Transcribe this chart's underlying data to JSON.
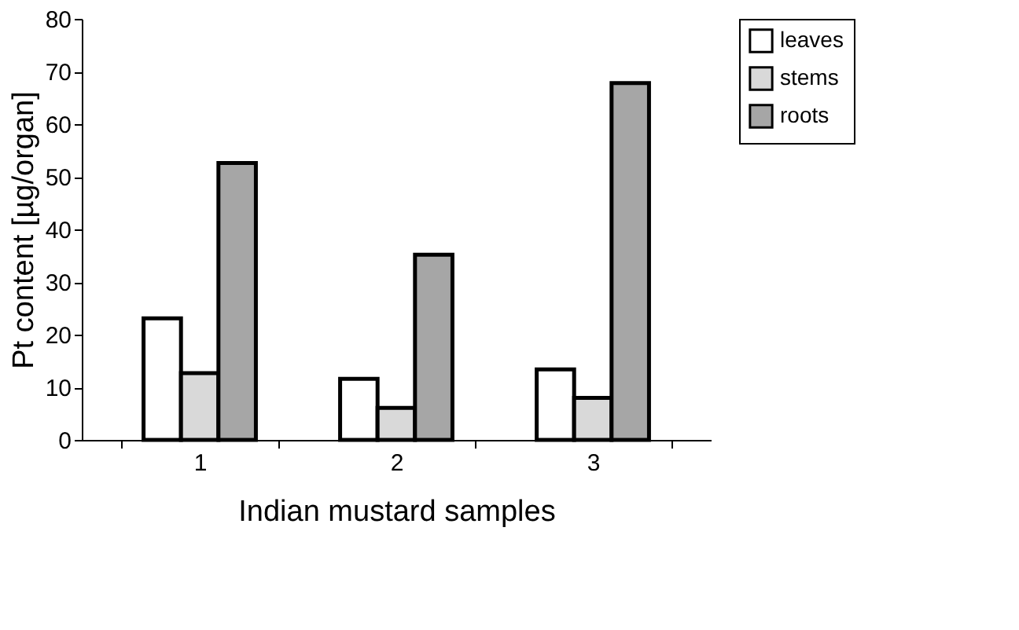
{
  "chart_data": {
    "type": "bar",
    "xlabel": "Indian mustard samples",
    "ylabel": "Pt content [µg/organ]",
    "categories": [
      "1",
      "2",
      "3"
    ],
    "series": [
      {
        "name": "leaves",
        "color": "#ffffff",
        "values": [
          23.1,
          11.6,
          13.4
        ]
      },
      {
        "name": "stems",
        "color": "#d9d9d9",
        "values": [
          12.7,
          6.1,
          8.0
        ]
      },
      {
        "name": "roots",
        "color": "#a6a6a6",
        "values": [
          52.6,
          35.2,
          67.8
        ]
      }
    ],
    "ylim": [
      0,
      80
    ],
    "yticks": [
      0,
      10,
      20,
      30,
      40,
      50,
      60,
      70,
      80
    ],
    "grid": false,
    "legend": "right"
  }
}
